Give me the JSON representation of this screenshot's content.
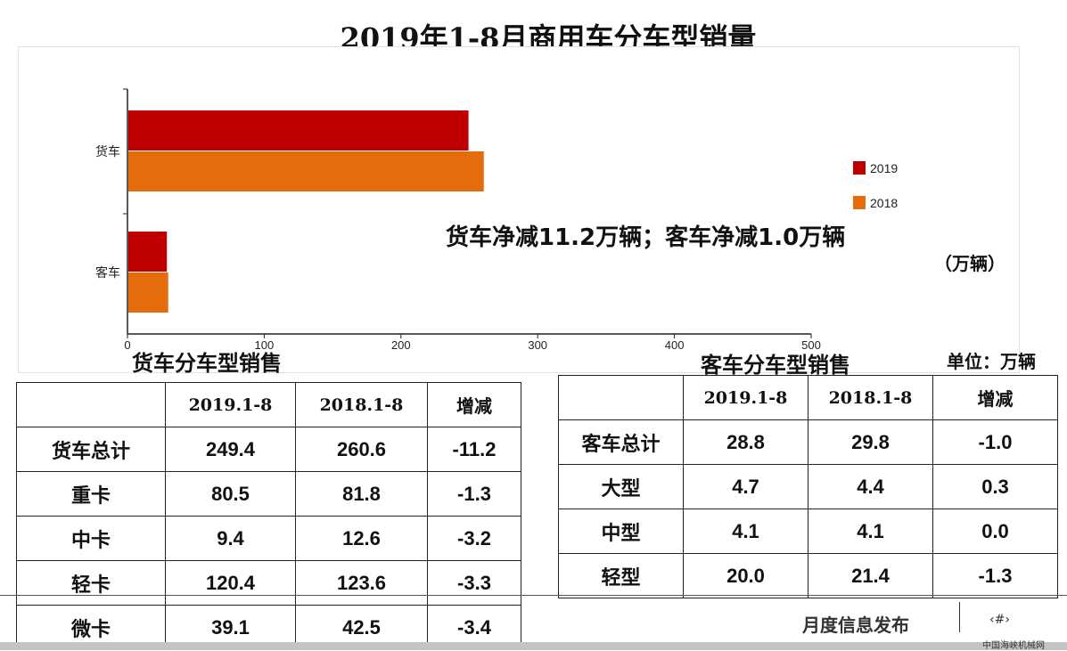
{
  "title": "2019年1-8月商用车分车型销量",
  "annotation": "货车净减11.2万辆；客车净减1.0万辆",
  "chart_unit": "（万辆）",
  "chart_data": {
    "type": "bar",
    "orientation": "horizontal",
    "categories": [
      "货车",
      "客车"
    ],
    "series": [
      {
        "name": "2019",
        "values": [
          249.4,
          28.8
        ],
        "color": "#C00000"
      },
      {
        "name": "2018",
        "values": [
          260.6,
          29.8
        ],
        "color": "#E46C0A"
      }
    ],
    "xlim": [
      0,
      500
    ],
    "xticks": [
      "0",
      "100",
      "200",
      "300",
      "400",
      "500"
    ],
    "legend": "right",
    "grid": false
  },
  "truck_table": {
    "title": "货车分车型销售",
    "headers": [
      "",
      "2019.1-8",
      "2018.1-8",
      "增减"
    ],
    "rows": [
      [
        "货车总计",
        "249.4",
        "260.6",
        "-11.2"
      ],
      [
        "重卡",
        "80.5",
        "81.8",
        "-1.3"
      ],
      [
        "中卡",
        "9.4",
        "12.6",
        "-3.2"
      ],
      [
        "轻卡",
        "120.4",
        "123.6",
        "-3.3"
      ],
      [
        "微卡",
        "39.1",
        "42.5",
        "-3.4"
      ]
    ]
  },
  "bus_table": {
    "title": "客车分车型销售",
    "unit": "单位：万辆",
    "headers": [
      "",
      "2019.1-8",
      "2018.1-8",
      "增减"
    ],
    "rows": [
      [
        "客车总计",
        "28.8",
        "29.8",
        "-1.0"
      ],
      [
        "大型",
        "4.7",
        "4.4",
        "0.3"
      ],
      [
        "中型",
        "4.1",
        "4.1",
        "0.0"
      ],
      [
        "轻型",
        "20.0",
        "21.4",
        "-1.3"
      ]
    ]
  },
  "footer": {
    "text": "月度信息发布",
    "page": "‹#›",
    "watermark": "中国海峡机械网"
  }
}
